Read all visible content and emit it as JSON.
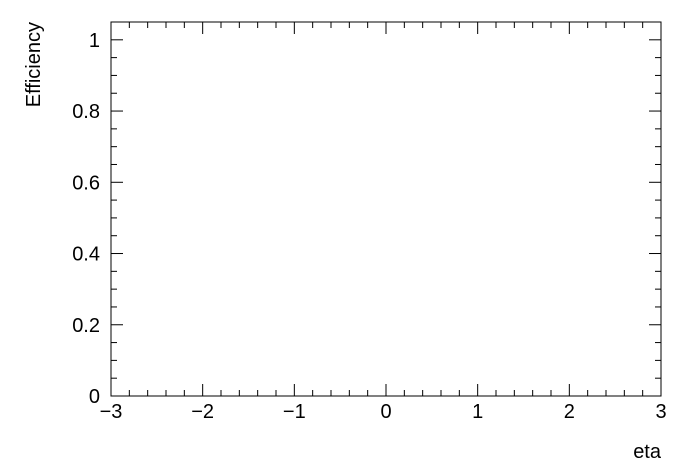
{
  "chart_data": {
    "type": "line",
    "title": "",
    "xlabel": "eta",
    "ylabel": "Efficiency",
    "xlim": [
      -3,
      3
    ],
    "ylim": [
      0,
      1.05
    ],
    "x_major_ticks": [
      -3,
      -2,
      -1,
      0,
      1,
      2,
      3
    ],
    "x_tick_labels": [
      "−3",
      "−2",
      "−1",
      "0",
      "1",
      "2",
      "3"
    ],
    "y_major_ticks": [
      0,
      0.2,
      0.4,
      0.6,
      0.8,
      1
    ],
    "y_tick_labels": [
      "0",
      "0.2",
      "0.4",
      "0.6",
      "0.8",
      "1"
    ],
    "series": [],
    "grid": false,
    "legend": "none"
  }
}
